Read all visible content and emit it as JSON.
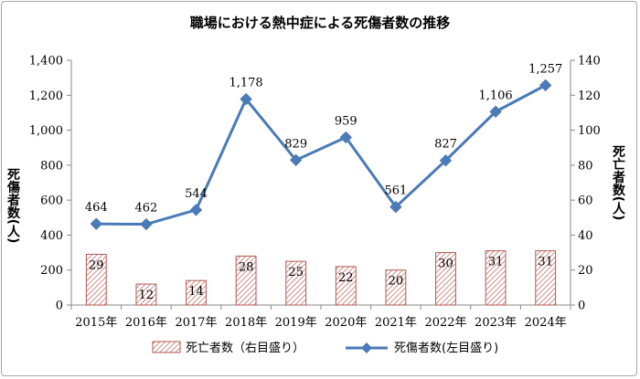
{
  "chart_data": {
    "type": "bar+line",
    "title": "職場における熱中症による死傷者数の推移",
    "categories": [
      "2015年",
      "2016年",
      "2017年",
      "2018年",
      "2019年",
      "2020年",
      "2021年",
      "2022年",
      "2023年",
      "2024年"
    ],
    "series": [
      {
        "name": "死亡者数（右目盛り）",
        "type": "bar",
        "axis": "right",
        "values": [
          29,
          12,
          14,
          28,
          25,
          22,
          20,
          30,
          31,
          31
        ]
      },
      {
        "name": "死傷者数(左目盛り)",
        "type": "line",
        "axis": "left",
        "values": [
          464,
          462,
          544,
          1178,
          829,
          959,
          561,
          827,
          1106,
          1257
        ]
      }
    ],
    "y_left": {
      "label": "死傷者数(人)",
      "min": 0,
      "max": 1400,
      "ticks": [
        "0",
        "200",
        "400",
        "600",
        "800",
        "1,000",
        "1,200",
        "1,400"
      ]
    },
    "y_right": {
      "label": "死亡者数(人)",
      "min": 0,
      "max": 140,
      "ticks": [
        "0",
        "20",
        "40",
        "60",
        "80",
        "100",
        "120",
        "140"
      ]
    },
    "line_labels": [
      "464",
      "462",
      "544",
      "1,178",
      "829",
      "959",
      "561",
      "827",
      "1,106",
      "1,257"
    ],
    "bar_labels": [
      "29",
      "12",
      "14",
      "28",
      "25",
      "22",
      "20",
      "30",
      "31",
      "31"
    ],
    "grid": false,
    "legend_position": "bottom",
    "colors": {
      "line": "#4a7ab7",
      "bar_stroke": "#b55a52",
      "bar_hatch": "#c0706a",
      "axis": "#888888"
    }
  }
}
